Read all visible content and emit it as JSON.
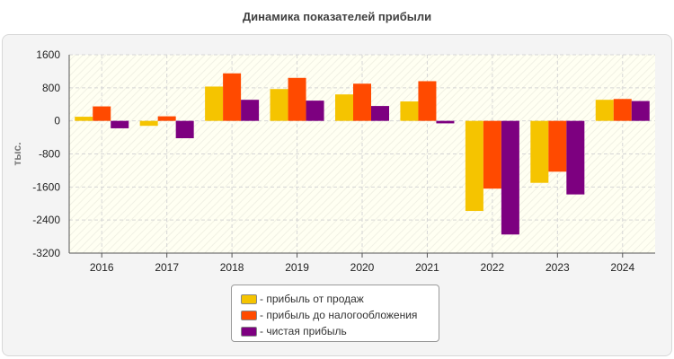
{
  "chart_data": {
    "type": "bar",
    "title": "Динамика показателей прибыли",
    "ylabel": "тыс.",
    "xlabel": "",
    "ylim": [
      -3200,
      1600
    ],
    "yticks": [
      1600,
      800,
      0,
      -800,
      -1600,
      -2400,
      -3200
    ],
    "grid": true,
    "legend_position": "bottom",
    "categories": [
      "2016",
      "2017",
      "2018",
      "2019",
      "2020",
      "2021",
      "2022",
      "2023",
      "2024"
    ],
    "series": [
      {
        "name": "прибыль от продаж",
        "color": "#f5c400",
        "values": [
          100,
          -120,
          830,
          770,
          640,
          470,
          -2180,
          -1500,
          510
        ]
      },
      {
        "name": "прибыль до налогообложения",
        "color": "#ff4a00",
        "values": [
          350,
          110,
          1150,
          1040,
          900,
          960,
          -1640,
          -1230,
          530
        ]
      },
      {
        "name": "чистая прибыль",
        "color": "#7d0080",
        "values": [
          -180,
          -420,
          510,
          490,
          360,
          -60,
          -2750,
          -1780,
          480
        ]
      }
    ]
  }
}
